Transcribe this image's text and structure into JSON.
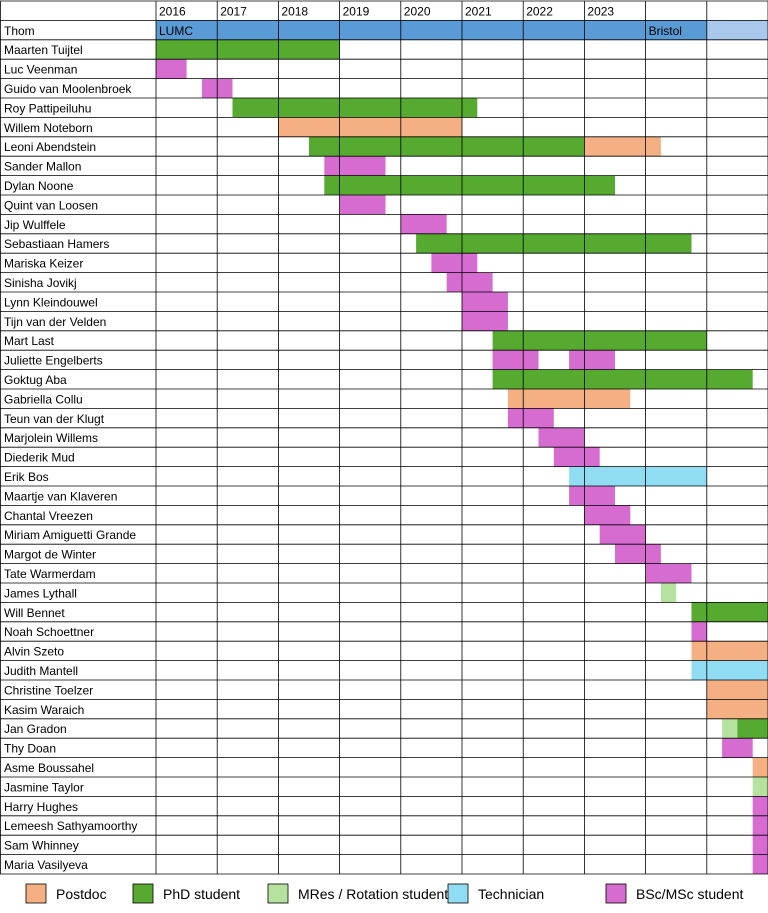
{
  "chart_data": {
    "type": "gantt",
    "years": [
      "2016",
      "2017",
      "2018",
      "2019",
      "2020",
      "2021",
      "2022",
      "2023",
      "",
      ""
    ],
    "header_label": "Thom",
    "locations": [
      {
        "name": "LUMC",
        "start": 0,
        "end": 8,
        "color": "#5b9bd5"
      },
      {
        "name": "Bristol",
        "start": 8,
        "end": 9,
        "color": "#5b9bd5"
      },
      {
        "name": "",
        "start": 9,
        "end": 10,
        "color": "#a9c8ec"
      }
    ],
    "role_colors": {
      "postdoc": "#f4b083",
      "phd": "#56aa2f",
      "mres": "#b6e2a0",
      "technician": "#8fdcf3",
      "bsc": "#d66bd0"
    },
    "people": [
      {
        "name": "Maarten Tuijtel",
        "bars": [
          {
            "role": "phd",
            "start": 0,
            "end": 3
          }
        ]
      },
      {
        "name": "Luc Veenman",
        "bars": [
          {
            "role": "bsc",
            "start": 0,
            "end": 0.5
          }
        ]
      },
      {
        "name": "Guido van Moolenbroek",
        "bars": [
          {
            "role": "bsc",
            "start": 0.75,
            "end": 1.25
          }
        ]
      },
      {
        "name": "Roy Pattipeiluhu",
        "bars": [
          {
            "role": "phd",
            "start": 1.25,
            "end": 5.25
          }
        ]
      },
      {
        "name": "Willem Noteborn",
        "bars": [
          {
            "role": "postdoc",
            "start": 2,
            "end": 5
          }
        ]
      },
      {
        "name": "Leoni Abendstein",
        "bars": [
          {
            "role": "phd",
            "start": 2.5,
            "end": 7
          },
          {
            "role": "postdoc",
            "start": 7,
            "end": 8.25
          }
        ]
      },
      {
        "name": "Sander Mallon",
        "bars": [
          {
            "role": "bsc",
            "start": 2.75,
            "end": 3.75
          }
        ]
      },
      {
        "name": "Dylan Noone",
        "bars": [
          {
            "role": "phd",
            "start": 2.75,
            "end": 7.5
          }
        ]
      },
      {
        "name": "Quint van Loosen",
        "bars": [
          {
            "role": "bsc",
            "start": 3,
            "end": 3.75
          }
        ]
      },
      {
        "name": "Jip Wulffele",
        "bars": [
          {
            "role": "bsc",
            "start": 4,
            "end": 4.75
          }
        ]
      },
      {
        "name": "Sebastiaan Hamers",
        "bars": [
          {
            "role": "phd",
            "start": 4.25,
            "end": 8.75
          }
        ]
      },
      {
        "name": "Mariska Keizer",
        "bars": [
          {
            "role": "bsc",
            "start": 4.5,
            "end": 5.25
          }
        ]
      },
      {
        "name": "Sinisha Jovikj",
        "bars": [
          {
            "role": "bsc",
            "start": 4.75,
            "end": 5.5
          }
        ]
      },
      {
        "name": "Lynn Kleindouwel",
        "bars": [
          {
            "role": "bsc",
            "start": 5,
            "end": 5.75
          }
        ]
      },
      {
        "name": "Tijn van der Velden",
        "bars": [
          {
            "role": "bsc",
            "start": 5,
            "end": 5.75
          }
        ]
      },
      {
        "name": "Mart Last",
        "bars": [
          {
            "role": "phd",
            "start": 5.5,
            "end": 9
          }
        ]
      },
      {
        "name": "Juliette Engelberts",
        "bars": [
          {
            "role": "bsc",
            "start": 5.5,
            "end": 6.25
          },
          {
            "role": "bsc",
            "start": 6.75,
            "end": 7.5
          }
        ]
      },
      {
        "name": "Goktug Aba",
        "bars": [
          {
            "role": "phd",
            "start": 5.5,
            "end": 9.75
          }
        ]
      },
      {
        "name": "Gabriella Collu",
        "bars": [
          {
            "role": "postdoc",
            "start": 5.75,
            "end": 7.75
          }
        ]
      },
      {
        "name": "Teun van der Klugt",
        "bars": [
          {
            "role": "bsc",
            "start": 5.75,
            "end": 6.5
          }
        ]
      },
      {
        "name": "Marjolein Willems",
        "bars": [
          {
            "role": "bsc",
            "start": 6.25,
            "end": 7
          }
        ]
      },
      {
        "name": "Diederik Mud",
        "bars": [
          {
            "role": "bsc",
            "start": 6.5,
            "end": 7.25
          }
        ]
      },
      {
        "name": "Erik Bos",
        "bars": [
          {
            "role": "technician",
            "start": 6.75,
            "end": 9
          }
        ]
      },
      {
        "name": "Maartje van Klaveren",
        "bars": [
          {
            "role": "bsc",
            "start": 6.75,
            "end": 7.5
          }
        ]
      },
      {
        "name": "Chantal Vreezen",
        "bars": [
          {
            "role": "bsc",
            "start": 7,
            "end": 7.75
          }
        ]
      },
      {
        "name": "Miriam Amiguetti Grande",
        "bars": [
          {
            "role": "bsc",
            "start": 7.25,
            "end": 8
          }
        ]
      },
      {
        "name": "Margot de Winter",
        "bars": [
          {
            "role": "bsc",
            "start": 7.5,
            "end": 8.25
          }
        ]
      },
      {
        "name": "Tate Warmerdam",
        "bars": [
          {
            "role": "bsc",
            "start": 8,
            "end": 8.75
          }
        ]
      },
      {
        "name": "James Lythall",
        "bars": [
          {
            "role": "mres",
            "start": 8.25,
            "end": 8.5
          }
        ]
      },
      {
        "name": "Will Bennet",
        "bars": [
          {
            "role": "phd",
            "start": 8.75,
            "end": 10
          }
        ]
      },
      {
        "name": "Noah Schoettner",
        "bars": [
          {
            "role": "bsc",
            "start": 8.75,
            "end": 9
          }
        ]
      },
      {
        "name": "Alvin Szeto",
        "bars": [
          {
            "role": "postdoc",
            "start": 8.75,
            "end": 10
          }
        ]
      },
      {
        "name": "Judith Mantell",
        "bars": [
          {
            "role": "technician",
            "start": 8.75,
            "end": 10
          }
        ]
      },
      {
        "name": "Christine Toelzer",
        "bars": [
          {
            "role": "postdoc",
            "start": 9,
            "end": 10
          }
        ]
      },
      {
        "name": "Kasim Waraich",
        "bars": [
          {
            "role": "postdoc",
            "start": 9,
            "end": 10
          }
        ]
      },
      {
        "name": "Jan Gradon",
        "bars": [
          {
            "role": "mres",
            "start": 9.25,
            "end": 9.5
          },
          {
            "role": "phd",
            "start": 9.5,
            "end": 10
          }
        ]
      },
      {
        "name": "Thy Doan",
        "bars": [
          {
            "role": "bsc",
            "start": 9.25,
            "end": 9.75
          }
        ]
      },
      {
        "name": "Asme Boussahel",
        "bars": [
          {
            "role": "postdoc",
            "start": 9.75,
            "end": 10
          }
        ]
      },
      {
        "name": "Jasmine Taylor",
        "bars": [
          {
            "role": "mres",
            "start": 9.75,
            "end": 10
          }
        ]
      },
      {
        "name": "Harry Hughes",
        "bars": [
          {
            "role": "bsc",
            "start": 9.75,
            "end": 10
          }
        ]
      },
      {
        "name": "Lemeesh Sathyamoorthy",
        "bars": [
          {
            "role": "bsc",
            "start": 9.75,
            "end": 10
          }
        ]
      },
      {
        "name": "Sam Whinney",
        "bars": [
          {
            "role": "bsc",
            "start": 9.75,
            "end": 10
          }
        ]
      },
      {
        "name": "Maria Vasilyeva",
        "bars": [
          {
            "role": "bsc",
            "start": 9.75,
            "end": 10
          }
        ]
      }
    ],
    "legend": [
      {
        "role": "postdoc",
        "label": "Postdoc"
      },
      {
        "role": "phd",
        "label": "PhD student"
      },
      {
        "role": "mres",
        "label": "MRes / Rotation student"
      },
      {
        "role": "technician",
        "label": "Technician"
      },
      {
        "role": "bsc",
        "label": "BSc/MSc student"
      }
    ]
  }
}
